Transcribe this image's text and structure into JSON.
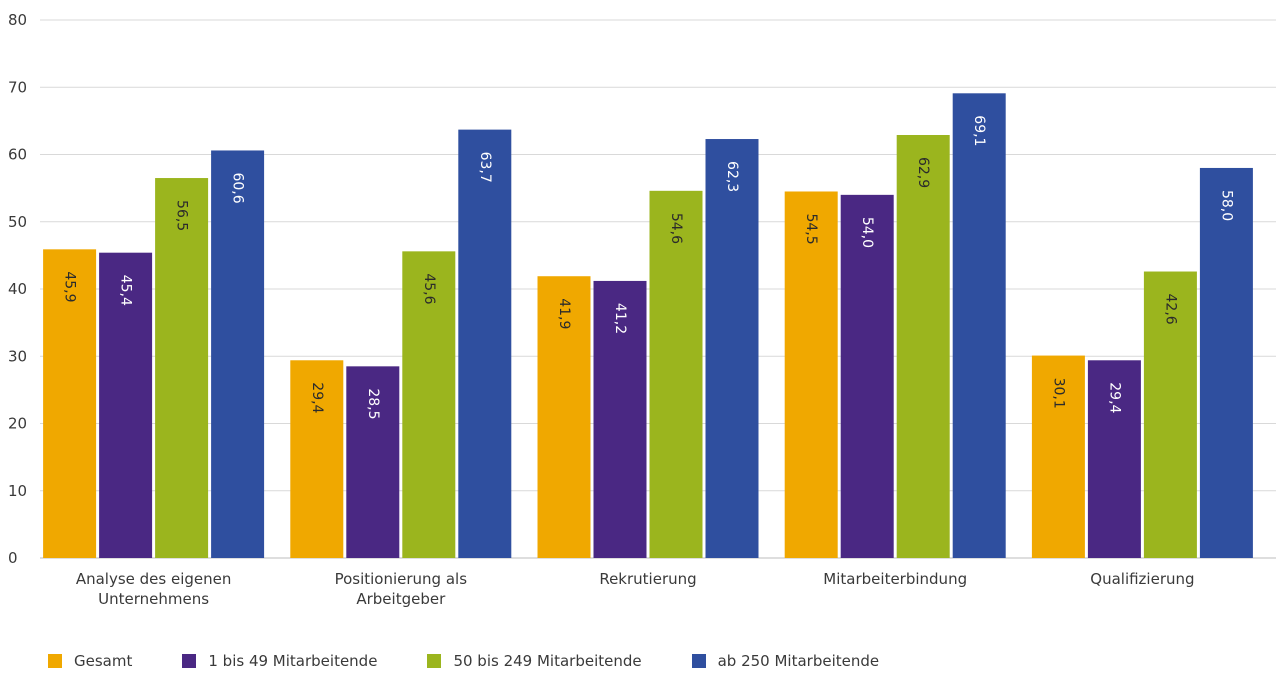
{
  "chart_data": {
    "type": "bar",
    "categories": [
      [
        "Analyse des eigenen",
        "Unternehmens"
      ],
      [
        "Positionierung als",
        "Arbeitgeber"
      ],
      [
        "Rekrutierung"
      ],
      [
        "Mitarbeiterbindung"
      ],
      [
        "Qualifizierung"
      ]
    ],
    "series": [
      {
        "name": "Gesamt",
        "color": "#F0A800",
        "values": [
          45.9,
          29.4,
          41.9,
          54.5,
          30.1
        ],
        "labels": [
          "45,9",
          "29,4",
          "41,9",
          "54,5",
          "30,1"
        ]
      },
      {
        "name": "1 bis 49 Mitarbeitende",
        "color": "#4A2883",
        "values": [
          45.4,
          28.5,
          41.2,
          54.0,
          29.4
        ],
        "labels": [
          "45,4",
          "28,5",
          "41,2",
          "54,0",
          "29,4"
        ]
      },
      {
        "name": "50 bis 249 Mitarbeitende",
        "color": "#9BB51E",
        "values": [
          56.5,
          45.6,
          54.6,
          62.9,
          42.6
        ],
        "labels": [
          "56,5",
          "45,6",
          "54,6",
          "62,9",
          "42,6"
        ]
      },
      {
        "name": "ab 250 Mitarbeitende",
        "color": "#2F4F9F",
        "values": [
          60.6,
          63.7,
          62.3,
          69.1,
          58.0
        ],
        "labels": [
          "60,6",
          "63,7",
          "62,3",
          "69,1",
          "58,0"
        ]
      }
    ],
    "yticks": [
      "0",
      "10",
      "20",
      "30",
      "40",
      "50",
      "60",
      "70",
      "80"
    ],
    "ylim": [
      0,
      80
    ],
    "grid": true,
    "legend_position": "bottom-left",
    "value_label_colors": {
      "Gesamt": "#2b2b2b",
      "1 bis 49 Mitarbeitende": "#ffffff",
      "50 bis 249 Mitarbeitende": "#2b2b2b",
      "ab 250 Mitarbeitende": "#ffffff"
    }
  }
}
